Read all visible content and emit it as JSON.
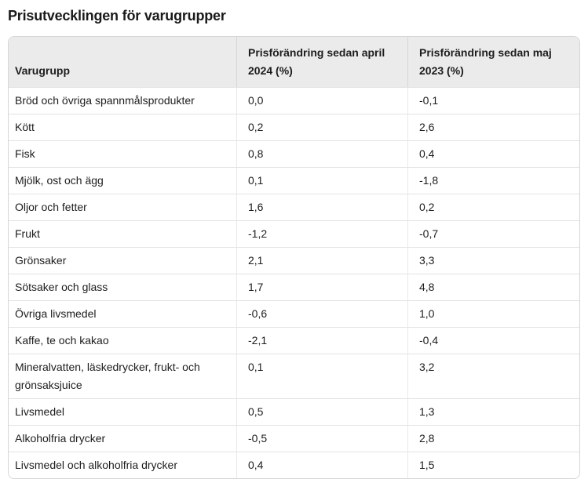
{
  "page": {
    "title": "Prisutvecklingen för varugrupper"
  },
  "colors": {
    "header_background": "#ebebeb",
    "outer_border": "#d6d6d6",
    "row_separator": "#e3e3e3",
    "text": "#1d1d1d",
    "page_background": "#ffffff"
  },
  "chart_data": {
    "type": "table",
    "title": "Prisutvecklingen för varugrupper",
    "columns": [
      "Varugrupp",
      "Prisförändring sedan april 2024 (%)",
      "Prisförändring sedan maj 2023 (%)"
    ],
    "rows": [
      [
        "Bröd och övriga spannmålsprodukter",
        "0,0",
        "-0,1"
      ],
      [
        "Kött",
        "0,2",
        "2,6"
      ],
      [
        "Fisk",
        "0,8",
        "0,4"
      ],
      [
        "Mjölk, ost och ägg",
        "0,1",
        "-1,8"
      ],
      [
        "Oljor och fetter",
        "1,6",
        "0,2"
      ],
      [
        "Frukt",
        "-1,2",
        "-0,7"
      ],
      [
        "Grönsaker",
        "2,1",
        "3,3"
      ],
      [
        "Sötsaker och glass",
        "1,7",
        "4,8"
      ],
      [
        "Övriga livsmedel",
        "-0,6",
        "1,0"
      ],
      [
        "Kaffe, te och kakao",
        "-2,1",
        "-0,4"
      ],
      [
        "Mineralvatten, läskedrycker, frukt- och grönsaksjuice",
        "0,1",
        "3,2"
      ],
      [
        "Livsmedel",
        "0,5",
        "1,3"
      ],
      [
        "Alkoholfria drycker",
        "-0,5",
        "2,8"
      ],
      [
        "Livsmedel och alkoholfria drycker",
        "0,4",
        "1,5"
      ]
    ]
  }
}
